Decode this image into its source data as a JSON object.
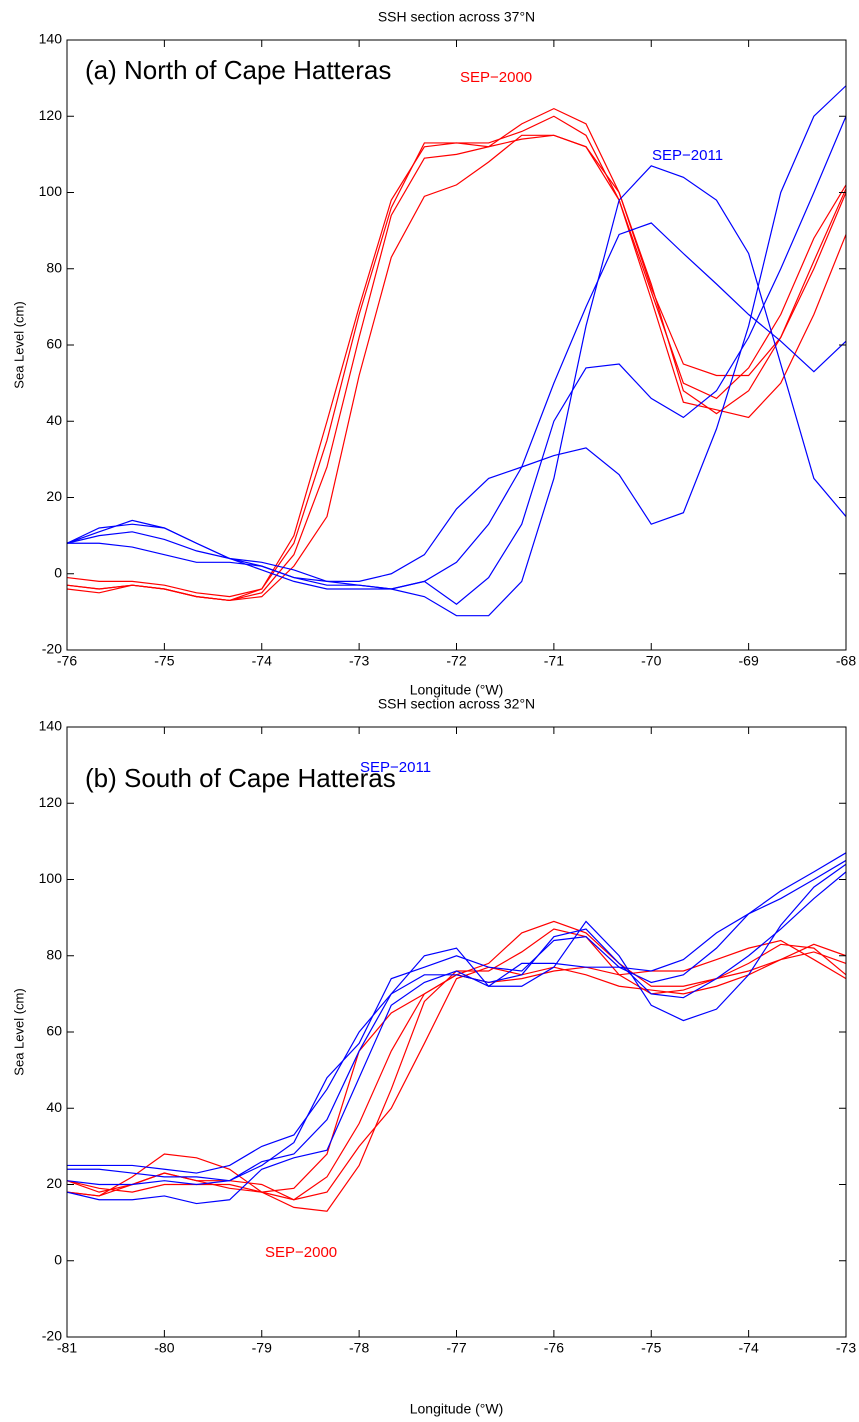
{
  "chart_data": [
    {
      "type": "line",
      "title": "SSH section across 37°N",
      "x_label": "Longitude (°W)",
      "y_label": "Sea Level (cm)",
      "annotations": [
        {
          "text": "(a) North of Cape Hatteras",
          "color": "#000000"
        },
        {
          "text": "SEP−2000",
          "color": "#ff0000"
        },
        {
          "text": "SEP−2011",
          "color": "#0000ff"
        }
      ],
      "x": [
        -76,
        -75.67,
        -75.33,
        -75,
        -74.67,
        -74.33,
        -74,
        -73.67,
        -73.33,
        -73,
        -72.67,
        -72.33,
        -72,
        -71.67,
        -71.33,
        -71,
        -70.67,
        -70.33,
        -70,
        -69.67,
        -69.33,
        -69,
        -68.67,
        -68.33,
        -68
      ],
      "series": [
        {
          "color": "#ff0000",
          "values": [
            -1,
            -2,
            -2,
            -3,
            -5,
            -6,
            -4,
            10,
            40,
            70,
            98,
            112,
            113,
            112,
            118,
            122,
            118,
            100,
            75,
            55,
            52,
            52,
            62,
            80,
            100
          ]
        },
        {
          "color": "#ff0000",
          "values": [
            -3,
            -4,
            -3,
            -4,
            -6,
            -7,
            -4,
            8,
            35,
            68,
            96,
            113,
            113,
            113,
            116,
            120,
            115,
            98,
            74,
            50,
            46,
            54,
            68,
            88,
            102
          ]
        },
        {
          "color": "#ff0000",
          "values": [
            -3,
            -4,
            -3,
            -4,
            -6,
            -7,
            -5,
            5,
            28,
            62,
            94,
            109,
            110,
            112,
            114,
            115,
            112,
            100,
            76,
            48,
            42,
            48,
            62,
            82,
            101
          ]
        },
        {
          "color": "#ff0000",
          "values": [
            -4,
            -5,
            -3,
            -4,
            -6,
            -7,
            -6,
            2,
            15,
            52,
            83,
            99,
            102,
            108,
            115,
            115,
            112,
            98,
            72,
            45,
            43,
            41,
            50,
            68,
            89
          ]
        },
        {
          "color": "#0000ff",
          "values": [
            8,
            11,
            14,
            12,
            8,
            4,
            1,
            -2,
            -4,
            -4,
            -4,
            -2,
            3,
            13,
            28,
            50,
            70,
            89,
            92,
            84,
            76,
            68,
            61,
            53,
            61
          ]
        },
        {
          "color": "#0000ff",
          "values": [
            8,
            12,
            13,
            12,
            8,
            4,
            2,
            -1,
            -2,
            -2,
            0,
            5,
            17,
            25,
            28,
            31,
            33,
            26,
            13,
            16,
            38,
            65,
            100,
            120,
            128
          ]
        },
        {
          "color": "#0000ff",
          "values": [
            8,
            10,
            11,
            9,
            6,
            4,
            3,
            1,
            -2,
            -3,
            -4,
            -6,
            -11,
            -11,
            -2,
            25,
            65,
            98,
            107,
            104,
            98,
            84,
            55,
            25,
            15
          ]
        },
        {
          "color": "#0000ff",
          "values": [
            8,
            8,
            7,
            5,
            3,
            3,
            2,
            -1,
            -3,
            -3,
            -4,
            -2,
            -8,
            -1,
            13,
            40,
            54,
            55,
            46,
            41,
            48,
            62,
            80,
            100,
            120
          ]
        }
      ],
      "xlim": [
        -76,
        -68
      ],
      "xticks": [
        -76,
        -75,
        -74,
        -73,
        -72,
        -71,
        -70,
        -69,
        -68
      ],
      "ylim": [
        -20,
        140
      ],
      "yticks": [
        -20,
        0,
        20,
        40,
        60,
        80,
        100,
        120,
        140
      ],
      "grid": false
    },
    {
      "type": "line",
      "title": "SSH section across 32°N",
      "x_label": "Longitude (°W)",
      "y_label": "Sea Level (cm)",
      "annotations": [
        {
          "text": "(b) South of Cape Hatteras",
          "color": "#000000"
        },
        {
          "text": "SEP−2011",
          "color": "#0000ff"
        },
        {
          "text": "SEP−2000",
          "color": "#ff0000"
        }
      ],
      "x": [
        -81,
        -80.67,
        -80.33,
        -80,
        -79.67,
        -79.33,
        -79,
        -78.67,
        -78.33,
        -78,
        -77.67,
        -77.33,
        -77,
        -76.67,
        -76.33,
        -76,
        -75.67,
        -75.33,
        -75,
        -74.67,
        -74.33,
        -74,
        -73.67,
        -73.33,
        -73
      ],
      "series": [
        {
          "color": "#ff0000",
          "values": [
            21,
            18,
            20,
            23,
            21,
            21,
            20,
            16,
            22,
            36,
            55,
            70,
            75,
            78,
            86,
            89,
            86,
            78,
            72,
            72,
            74,
            76,
            79,
            83,
            80
          ]
        },
        {
          "color": "#ff0000",
          "values": [
            18,
            17,
            22,
            28,
            27,
            24,
            18,
            14,
            13,
            25,
            45,
            68,
            76,
            76,
            81,
            87,
            85,
            75,
            70,
            71,
            74,
            78,
            83,
            82,
            75
          ]
        },
        {
          "color": "#ff0000",
          "values": [
            21,
            19,
            18,
            20,
            20,
            20,
            18,
            19,
            28,
            55,
            65,
            70,
            75,
            73,
            74,
            76,
            77,
            75,
            76,
            76,
            79,
            82,
            84,
            79,
            74
          ]
        },
        {
          "color": "#ff0000",
          "values": [
            18,
            17,
            20,
            23,
            21,
            19,
            18,
            16,
            18,
            30,
            40,
            57,
            74,
            77,
            75,
            77,
            75,
            72,
            71,
            70,
            72,
            75,
            79,
            81,
            78
          ]
        },
        {
          "color": "#0000ff",
          "values": [
            25,
            25,
            25,
            24,
            23,
            25,
            30,
            33,
            45,
            60,
            70,
            80,
            82,
            72,
            72,
            77,
            89,
            80,
            67,
            63,
            66,
            75,
            88,
            98,
            104
          ]
        },
        {
          "color": "#0000ff",
          "values": [
            24,
            24,
            23,
            22,
            22,
            21,
            25,
            31,
            48,
            57,
            74,
            77,
            80,
            77,
            76,
            84,
            85,
            77,
            73,
            75,
            82,
            91,
            97,
            102,
            107
          ]
        },
        {
          "color": "#0000ff",
          "values": [
            21,
            20,
            20,
            21,
            20,
            21,
            26,
            28,
            37,
            55,
            70,
            75,
            75,
            73,
            75,
            85,
            87,
            78,
            70,
            69,
            74,
            80,
            87,
            95,
            102
          ]
        },
        {
          "color": "#0000ff",
          "values": [
            18,
            16,
            16,
            17,
            15,
            16,
            24,
            27,
            29,
            48,
            67,
            73,
            76,
            72,
            78,
            78,
            77,
            77,
            76,
            79,
            86,
            91,
            95,
            100,
            105
          ]
        }
      ],
      "xlim": [
        -81,
        -73
      ],
      "xticks": [
        -81,
        -80,
        -79,
        -78,
        -77,
        -76,
        -75,
        -74,
        -73
      ],
      "ylim": [
        -20,
        140
      ],
      "yticks": [
        -20,
        0,
        20,
        40,
        60,
        80,
        100,
        120,
        140
      ],
      "grid": false
    }
  ]
}
